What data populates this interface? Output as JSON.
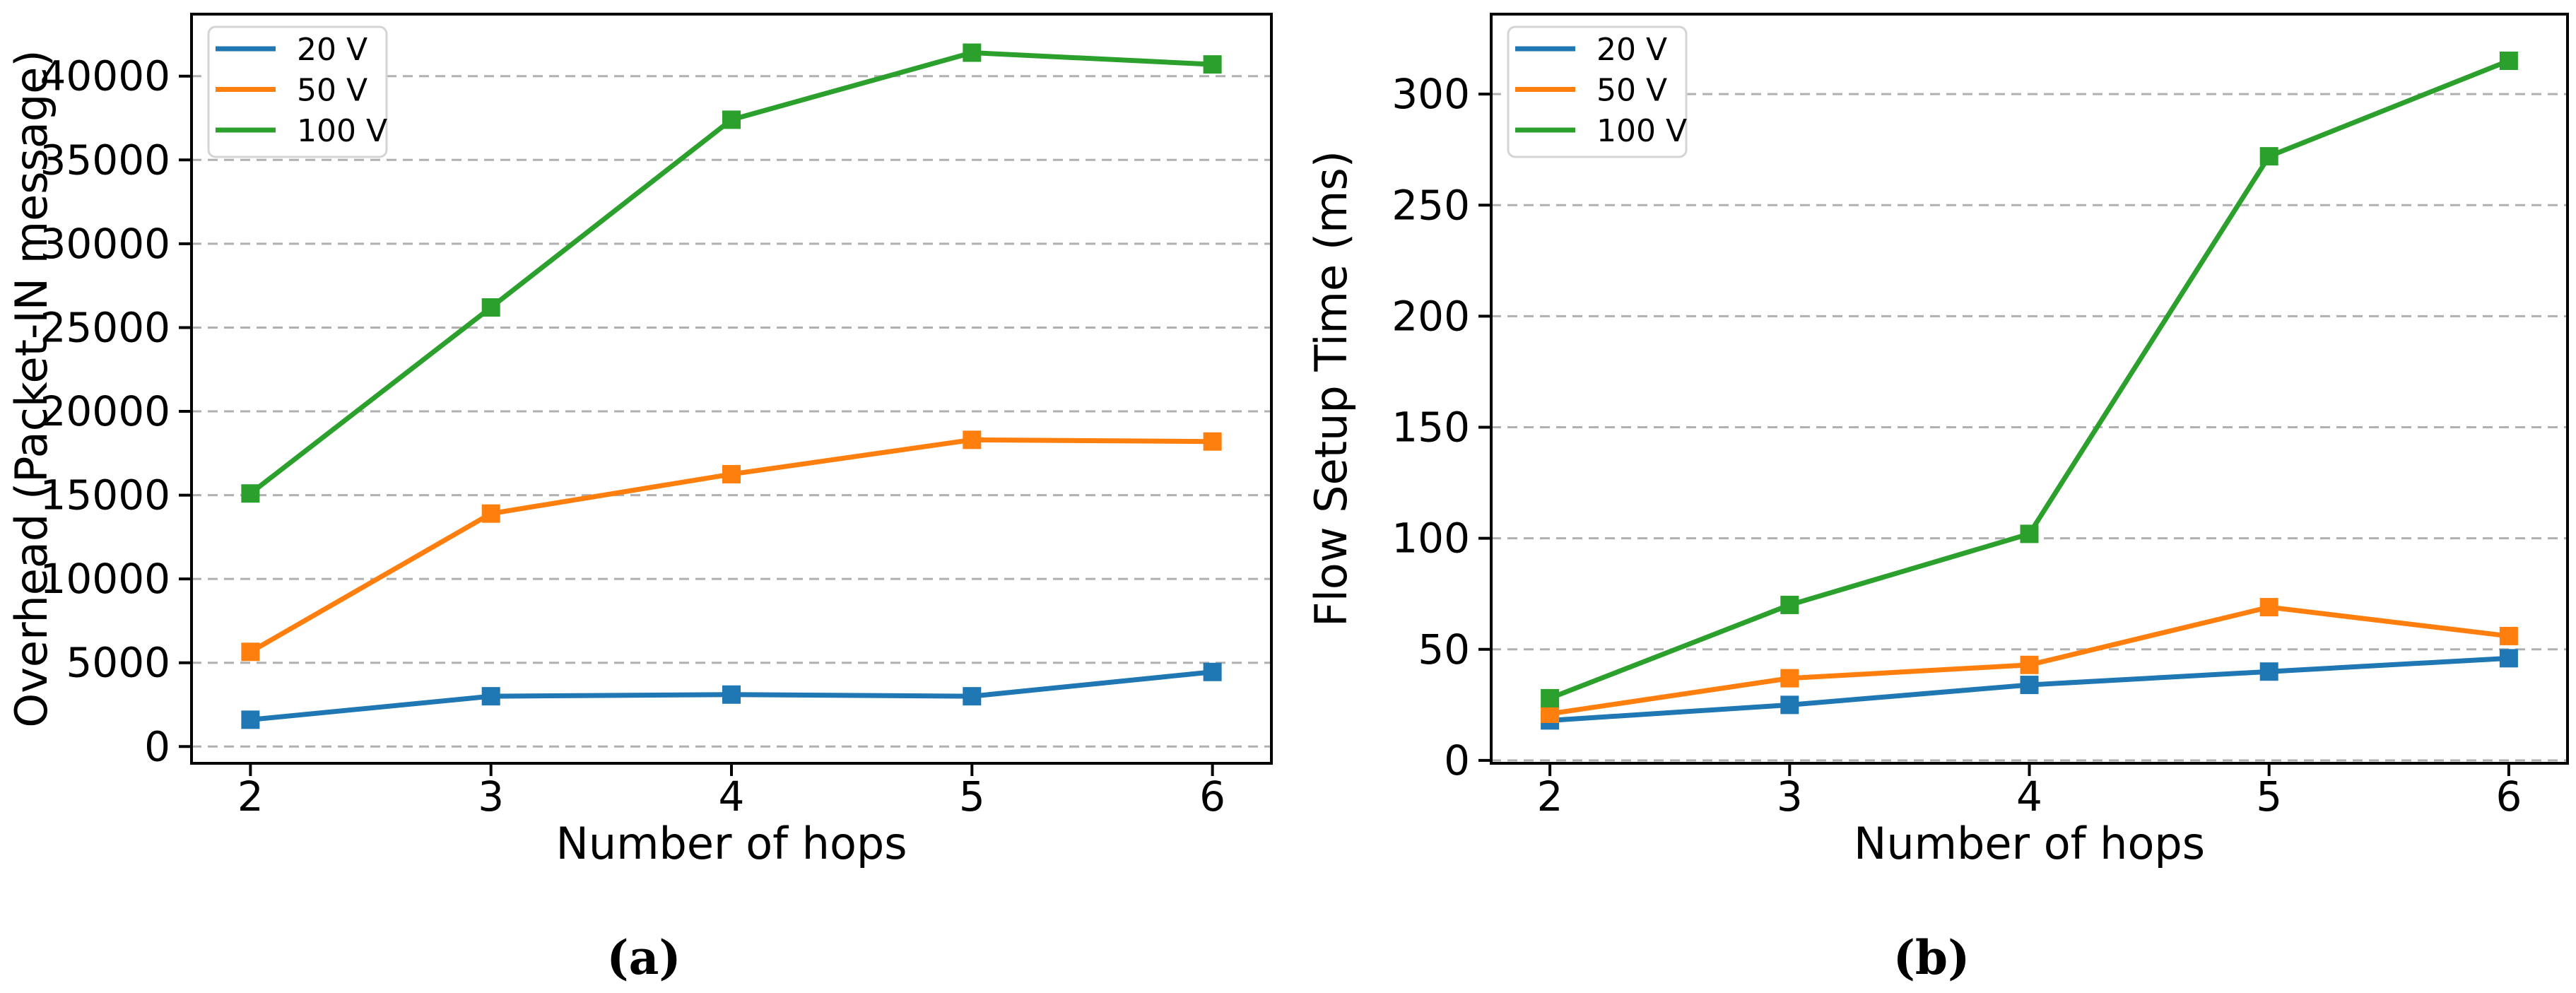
{
  "figure": {
    "background": "#ffffff",
    "text_color": "#000000",
    "grid_color": "#b0b0b0",
    "spine_color": "#000000",
    "captions": [
      {
        "open": "(",
        "letter": "a",
        "close": ")"
      },
      {
        "open": "(",
        "letter": "b",
        "close": ")"
      }
    ]
  },
  "chart_data": [
    {
      "type": "line",
      "panel": "a",
      "title": "",
      "xlabel": "Number of hops",
      "ylabel": "Overhead (Packet-IN message)",
      "x": [
        2,
        3,
        4,
        5,
        6
      ],
      "xticks": [
        2,
        3,
        4,
        5,
        6
      ],
      "xlim": [
        1.755,
        6.245
      ],
      "ylim": [
        -1000,
        43700
      ],
      "yticks": [
        0,
        5000,
        10000,
        15000,
        20000,
        25000,
        30000,
        35000,
        40000
      ],
      "grid": {
        "axis": "y",
        "style": "dashed",
        "on": true
      },
      "legend_position": "upper left",
      "marker": "square",
      "series": [
        {
          "name": "20 V",
          "color": "#1f77b4",
          "values": [
            1600,
            3000,
            3100,
            3000,
            4450
          ]
        },
        {
          "name": "50 V",
          "color": "#ff7f0e",
          "values": [
            5650,
            13900,
            16250,
            18300,
            18200
          ]
        },
        {
          "name": "100 V",
          "color": "#2ca02c",
          "values": [
            15100,
            26200,
            37400,
            41400,
            40700
          ]
        }
      ]
    },
    {
      "type": "line",
      "panel": "b",
      "title": "",
      "xlabel": "Number of hops",
      "ylabel": "Flow Setup Time (ms)",
      "x": [
        2,
        3,
        4,
        5,
        6
      ],
      "xticks": [
        2,
        3,
        4,
        5,
        6
      ],
      "xlim": [
        1.755,
        6.245
      ],
      "ylim": [
        -1.3,
        336
      ],
      "yticks": [
        0,
        50,
        100,
        150,
        200,
        250,
        300
      ],
      "grid": {
        "axis": "y",
        "style": "dashed",
        "on": true
      },
      "legend_position": "upper left",
      "marker": "square",
      "series": [
        {
          "name": "20 V",
          "color": "#1f77b4",
          "values": [
            18,
            25,
            34,
            40,
            46
          ]
        },
        {
          "name": "50 V",
          "color": "#ff7f0e",
          "values": [
            21,
            37,
            43,
            69,
            56
          ]
        },
        {
          "name": "100 V",
          "color": "#2ca02c",
          "values": [
            28,
            70,
            102,
            272,
            315
          ]
        }
      ]
    }
  ]
}
